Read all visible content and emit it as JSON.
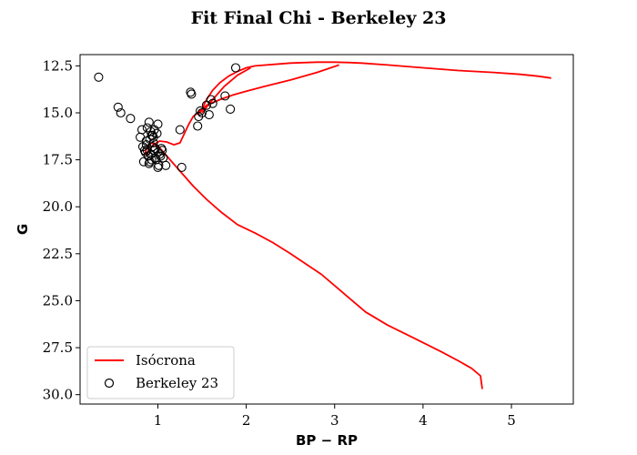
{
  "chart_data": {
    "type": "scatter",
    "title": "Fit Final Chi - Berkeley 23",
    "xlabel": "BP − RP",
    "ylabel": "G",
    "xlim": [
      0.12,
      5.7
    ],
    "ylim": [
      30.5,
      11.9
    ],
    "y_inverted": true,
    "grid": false,
    "legend_position": "lower-left",
    "x_ticks": [
      1,
      2,
      3,
      4,
      5
    ],
    "x_tick_labels": [
      "1",
      "2",
      "3",
      "4",
      "5"
    ],
    "y_ticks": [
      12.5,
      15.0,
      17.5,
      20.0,
      22.5,
      25.0,
      27.5,
      30.0
    ],
    "y_tick_labels": [
      "12.5",
      "15.0",
      "17.5",
      "20.0",
      "22.5",
      "25.0",
      "27.5",
      "30.0"
    ],
    "series": [
      {
        "name": "Isócrona",
        "kind": "line",
        "color": "#ff0000",
        "x": [
          4.67,
          4.65,
          4.55,
          4.4,
          4.2,
          3.9,
          3.6,
          3.35,
          3.1,
          2.85,
          2.5,
          2.3,
          2.1,
          1.9,
          1.72,
          1.55,
          1.4,
          1.25,
          1.12,
          1.01,
          0.93,
          0.88,
          0.86,
          0.87,
          0.9,
          0.95,
          1.02,
          1.1,
          1.18,
          1.25,
          1.3,
          1.35,
          1.4,
          1.45,
          1.5,
          1.55,
          1.62,
          1.7,
          1.8,
          1.9,
          2.0,
          2.1,
          2.5,
          2.8,
          3.0,
          3.15,
          3.3,
          3.6,
          4.0,
          4.4,
          4.8,
          5.1,
          5.3,
          5.45
        ],
        "y": [
          29.7,
          29.0,
          28.6,
          28.2,
          27.7,
          27.0,
          26.3,
          25.6,
          24.6,
          23.6,
          22.5,
          21.9,
          21.4,
          20.95,
          20.3,
          19.6,
          18.9,
          18.1,
          17.4,
          16.8,
          16.6,
          16.8,
          17.1,
          17.25,
          17.0,
          16.7,
          16.5,
          16.55,
          16.7,
          16.6,
          16.1,
          15.6,
          15.2,
          15.0,
          14.8,
          14.3,
          13.8,
          13.4,
          13.05,
          12.8,
          12.6,
          12.5,
          12.35,
          12.3,
          12.3,
          12.32,
          12.35,
          12.45,
          12.6,
          12.75,
          12.85,
          12.95,
          13.05,
          13.15
        ]
      },
      {
        "name": "Isócrona",
        "kind": "line",
        "color": "#ff0000",
        "x": [
          1.45,
          1.55,
          1.7,
          1.85,
          2.0,
          2.2,
          2.5,
          2.8,
          3.05
        ],
        "y": [
          15.1,
          14.6,
          14.3,
          14.05,
          13.85,
          13.6,
          13.25,
          12.85,
          12.45
        ]
      },
      {
        "name": "Isócrona",
        "kind": "line",
        "color": "#ff0000",
        "x": [
          1.5,
          1.6,
          1.75,
          1.9,
          2.05
        ],
        "y": [
          15.0,
          14.4,
          13.6,
          13.0,
          12.6
        ]
      },
      {
        "name": "Berkeley 23",
        "kind": "scatter",
        "marker": "circle-open",
        "color": "#000000",
        "x": [
          0.33,
          0.55,
          0.58,
          0.69,
          1.88,
          1.37,
          1.38,
          1.76,
          1.82,
          1.6,
          1.62,
          1.55,
          1.48,
          1.5,
          1.46,
          1.58,
          1.45,
          1.25,
          0.82,
          0.8,
          0.83,
          0.85,
          0.87,
          0.88,
          0.9,
          0.92,
          0.94,
          0.95,
          0.97,
          1.0,
          0.86,
          0.89,
          0.91,
          0.93,
          0.96,
          0.99,
          1.02,
          1.04,
          1.06,
          0.84,
          0.87,
          0.9,
          0.92,
          0.95,
          0.98,
          1.01,
          1.03,
          0.88,
          0.91,
          0.94,
          0.97,
          1.0,
          1.09,
          1.0,
          1.27,
          0.93,
          0.96,
          1.05
        ],
        "y": [
          13.1,
          14.7,
          15.0,
          15.3,
          12.6,
          13.9,
          14.0,
          14.1,
          14.8,
          14.3,
          14.5,
          14.6,
          14.9,
          15.0,
          15.2,
          15.1,
          15.7,
          15.9,
          15.9,
          16.3,
          16.8,
          17.0,
          16.5,
          15.8,
          15.5,
          16.0,
          16.2,
          16.6,
          16.9,
          15.6,
          17.1,
          17.3,
          16.4,
          17.5,
          17.0,
          16.1,
          17.2,
          16.9,
          17.4,
          17.6,
          16.7,
          17.7,
          17.2,
          16.3,
          17.5,
          17.8,
          17.3,
          17.0,
          17.6,
          16.8,
          17.4,
          17.1,
          17.8,
          17.9,
          17.9,
          16.2,
          15.9,
          17.0
        ]
      }
    ]
  },
  "legend": {
    "items": [
      {
        "label": "Isócrona",
        "color": "#ff0000",
        "symbol": "line"
      },
      {
        "label": "Berkeley 23",
        "color": "#000000",
        "symbol": "circle-open"
      }
    ]
  }
}
